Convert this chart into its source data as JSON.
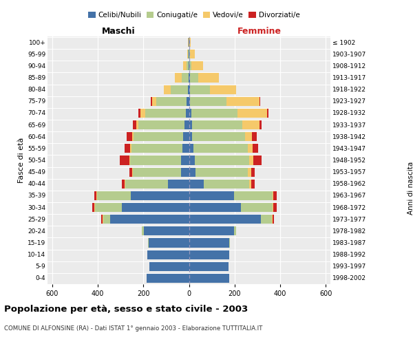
{
  "age_groups": [
    "0-4",
    "5-9",
    "10-14",
    "15-19",
    "20-24",
    "25-29",
    "30-34",
    "35-39",
    "40-44",
    "45-49",
    "50-54",
    "55-59",
    "60-64",
    "65-69",
    "70-74",
    "75-79",
    "80-84",
    "85-89",
    "90-94",
    "95-99",
    "100+"
  ],
  "birth_years": [
    "1998-2002",
    "1993-1997",
    "1988-1992",
    "1983-1987",
    "1978-1982",
    "1973-1977",
    "1968-1972",
    "1963-1967",
    "1958-1962",
    "1953-1957",
    "1948-1952",
    "1943-1947",
    "1938-1942",
    "1933-1937",
    "1928-1932",
    "1923-1927",
    "1918-1922",
    "1913-1917",
    "1908-1912",
    "1903-1907",
    "≤ 1902"
  ],
  "colors": {
    "celibi": "#4472a8",
    "coniugati": "#b5cc8e",
    "vedovi": "#f5c96a",
    "divorziati": "#cc2222"
  },
  "males": {
    "celibi": [
      185,
      172,
      182,
      178,
      198,
      345,
      295,
      255,
      92,
      35,
      35,
      30,
      25,
      20,
      15,
      10,
      5,
      2,
      2,
      2,
      2
    ],
    "coniugati": [
      0,
      0,
      0,
      2,
      8,
      32,
      118,
      148,
      188,
      212,
      222,
      222,
      218,
      202,
      178,
      132,
      76,
      30,
      8,
      2,
      0
    ],
    "vedovi": [
      0,
      0,
      0,
      0,
      0,
      2,
      2,
      3,
      3,
      3,
      5,
      5,
      5,
      10,
      20,
      20,
      30,
      30,
      15,
      5,
      2
    ],
    "divorziati": [
      0,
      0,
      0,
      0,
      0,
      5,
      10,
      10,
      10,
      10,
      40,
      25,
      25,
      15,
      10,
      5,
      0,
      0,
      0,
      0,
      0
    ]
  },
  "females": {
    "nubili": [
      178,
      172,
      178,
      178,
      198,
      315,
      228,
      198,
      66,
      30,
      25,
      20,
      15,
      15,
      10,
      5,
      5,
      5,
      2,
      2,
      2
    ],
    "coniugate": [
      0,
      0,
      0,
      2,
      8,
      48,
      138,
      168,
      198,
      228,
      238,
      238,
      232,
      218,
      202,
      158,
      86,
      35,
      10,
      3,
      0
    ],
    "vedove": [
      0,
      0,
      0,
      0,
      0,
      5,
      5,
      5,
      10,
      15,
      20,
      20,
      30,
      75,
      130,
      145,
      115,
      90,
      50,
      20,
      5
    ],
    "divorziate": [
      0,
      0,
      0,
      0,
      0,
      5,
      15,
      15,
      15,
      15,
      35,
      25,
      20,
      10,
      5,
      5,
      0,
      0,
      0,
      0,
      0
    ]
  },
  "xlim": 620,
  "title": "Popolazione per età, sesso e stato civile - 2003",
  "subtitle": "COMUNE DI ALFONSINE (RA) - Dati ISTAT 1° gennaio 2003 - Elaborazione TUTTITALIA.IT",
  "ylabel_left": "Fasce di età",
  "ylabel_right": "Anni di nascita",
  "xlabel_left": "Maschi",
  "xlabel_right": "Femmine",
  "plot_bg_color": "#ebebeb"
}
